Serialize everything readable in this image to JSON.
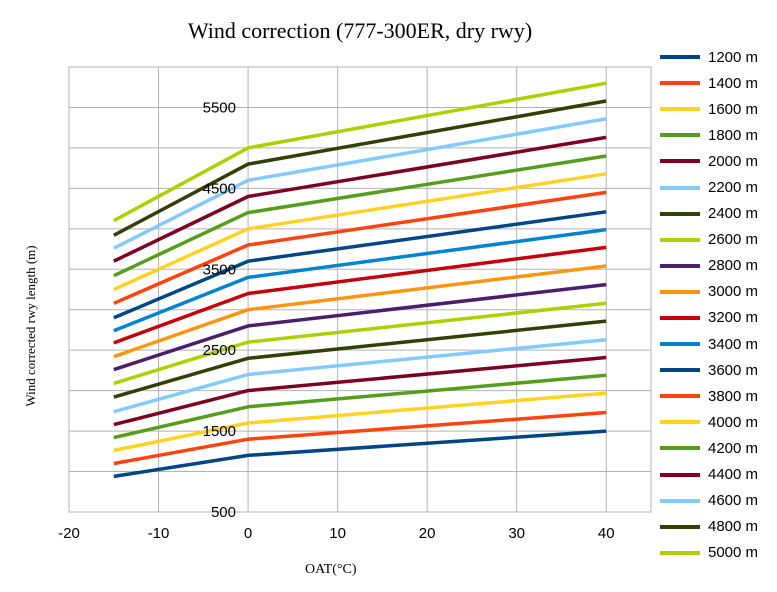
{
  "chart_data": {
    "type": "line",
    "title": "Wind correction (777-300ER, dry rwy)",
    "xlabel": "OAT(°C)",
    "ylabel": "Wind corrected rwy length (m)",
    "xlim": [
      -20,
      45
    ],
    "ylim": [
      500,
      6000
    ],
    "x_ticks": [
      "-20",
      "-10",
      "0",
      "10",
      "20",
      "30",
      "40"
    ],
    "y_ticks": [
      "500",
      "1500",
      "2500",
      "3500",
      "4500",
      "5500"
    ],
    "grid": true,
    "legend_position": "right",
    "x": [
      -15,
      0,
      40
    ],
    "series": [
      {
        "name": "1200 m",
        "color": "#004586",
        "values": [
          940,
          1200,
          1500
        ]
      },
      {
        "name": "1400 m",
        "color": "#ff420e",
        "values": [
          1100,
          1400,
          1730
        ]
      },
      {
        "name": "1600 m",
        "color": "#ffd320",
        "values": [
          1260,
          1600,
          1970
        ]
      },
      {
        "name": "1800 m",
        "color": "#579d1c",
        "values": [
          1420,
          1800,
          2190
        ]
      },
      {
        "name": "2000 m",
        "color": "#7e0021",
        "values": [
          1580,
          2000,
          2410
        ]
      },
      {
        "name": "2200 m",
        "color": "#83caff",
        "values": [
          1740,
          2200,
          2630
        ]
      },
      {
        "name": "2400 m",
        "color": "#314004",
        "values": [
          1920,
          2400,
          2860
        ]
      },
      {
        "name": "2600 m",
        "color": "#aecf00",
        "values": [
          2090,
          2600,
          3080
        ]
      },
      {
        "name": "2800 m",
        "color": "#4b1f6f",
        "values": [
          2260,
          2800,
          3310
        ]
      },
      {
        "name": "3000 m",
        "color": "#ff950e",
        "values": [
          2420,
          3000,
          3540
        ]
      },
      {
        "name": "3200 m",
        "color": "#c5000b",
        "values": [
          2590,
          3200,
          3770
        ]
      },
      {
        "name": "3400 m",
        "color": "#0084d1",
        "values": [
          2740,
          3400,
          3990
        ]
      },
      {
        "name": "3600 m",
        "color": "#004586",
        "values": [
          2900,
          3600,
          4210
        ]
      },
      {
        "name": "3800 m",
        "color": "#ff420e",
        "values": [
          3080,
          3800,
          4450
        ]
      },
      {
        "name": "4000 m",
        "color": "#ffd320",
        "values": [
          3250,
          4000,
          4680
        ]
      },
      {
        "name": "4200 m",
        "color": "#579d1c",
        "values": [
          3420,
          4200,
          4900
        ]
      },
      {
        "name": "4400 m",
        "color": "#7e0021",
        "values": [
          3600,
          4400,
          5130
        ]
      },
      {
        "name": "4600 m",
        "color": "#83caff",
        "values": [
          3760,
          4600,
          5360
        ]
      },
      {
        "name": "4800 m",
        "color": "#314004",
        "values": [
          3920,
          4800,
          5580
        ]
      },
      {
        "name": "5000 m",
        "color": "#aecf00",
        "values": [
          4100,
          5000,
          5800
        ]
      }
    ]
  }
}
